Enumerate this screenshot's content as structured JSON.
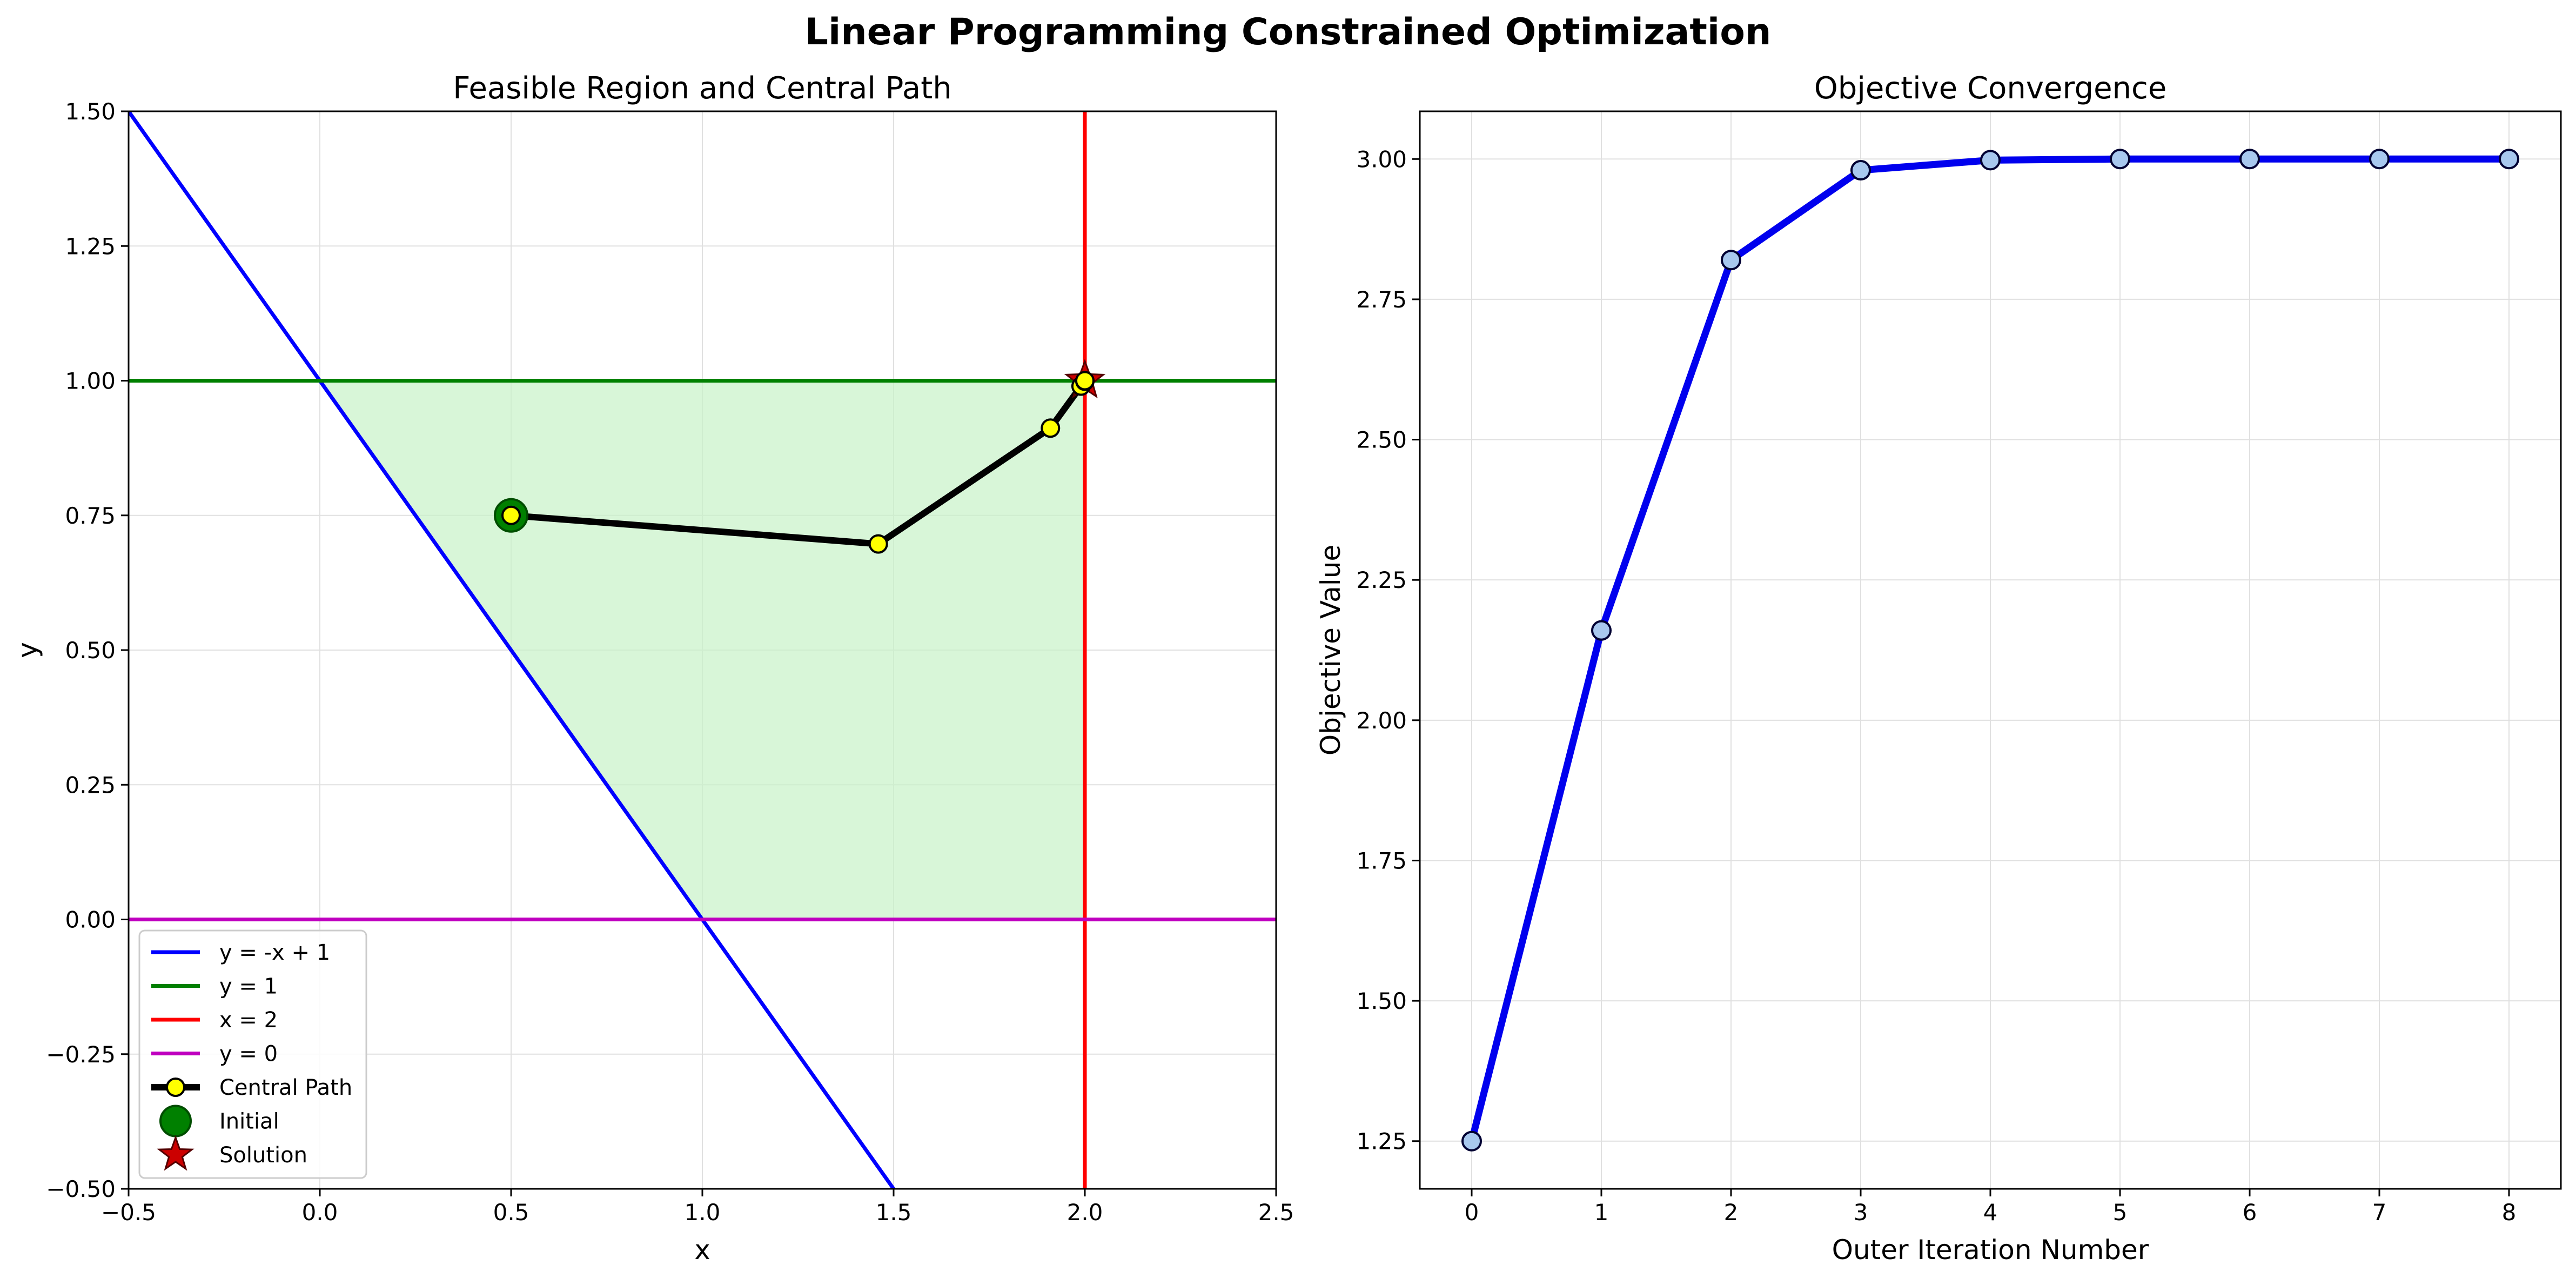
{
  "suptitle": "Linear Programming Constrained Optimization",
  "chart_data": [
    {
      "type": "line",
      "title": "Feasible Region and Central Path",
      "xlabel": "x",
      "ylabel": "y",
      "xlim": [
        -0.5,
        2.5
      ],
      "ylim": [
        -0.5,
        1.5
      ],
      "xticks": [
        -0.5,
        0.0,
        0.5,
        1.0,
        1.5,
        2.0,
        2.5
      ],
      "xtick_labels": [
        "−0.5",
        "0.0",
        "0.5",
        "1.0",
        "1.5",
        "2.0",
        "2.5"
      ],
      "yticks": [
        -0.5,
        -0.25,
        0.0,
        0.25,
        0.5,
        0.75,
        1.0,
        1.25,
        1.5
      ],
      "ytick_labels": [
        "−0.50",
        "−0.25",
        "0.00",
        "0.25",
        "0.50",
        "0.75",
        "1.00",
        "1.25",
        "1.50"
      ],
      "grid": true,
      "legend_position": "lower-left",
      "feasible_region": {
        "polygon": [
          [
            0,
            1
          ],
          [
            2,
            1
          ],
          [
            2,
            0
          ],
          [
            1,
            0
          ]
        ],
        "color": "#c8f2c8"
      },
      "constraints": [
        {
          "name": "y = -x + 1",
          "points": [
            [
              -0.5,
              1.5
            ],
            [
              1.5,
              -0.5
            ]
          ],
          "color": "#0000ff"
        },
        {
          "name": "y = 1",
          "points": [
            [
              -0.5,
              1.0
            ],
            [
              2.5,
              1.0
            ]
          ],
          "color": "#008000"
        },
        {
          "name": "x = 2",
          "points": [
            [
              2.0,
              -0.5
            ],
            [
              2.0,
              1.5
            ]
          ],
          "color": "#ff0000"
        },
        {
          "name": "y = 0",
          "points": [
            [
              -0.5,
              0.0
            ],
            [
              2.5,
              0.0
            ]
          ],
          "color": "#bf00bf"
        }
      ],
      "central_path": {
        "name": "Central Path",
        "x": [
          0.5,
          1.46,
          1.91,
          1.99,
          2.0,
          2.0
        ],
        "y": [
          0.75,
          0.697,
          0.912,
          0.99,
          0.999,
          1.0
        ],
        "line_color": "#000000",
        "marker_color": "#ffff00"
      },
      "initial": {
        "name": "Initial",
        "x": 0.5,
        "y": 0.75,
        "color": "#008000"
      },
      "solution": {
        "name": "Solution",
        "x": 2.0,
        "y": 1.0,
        "color": "#cc0000"
      }
    },
    {
      "type": "line",
      "title": "Objective Convergence",
      "xlabel": "Outer Iteration Number",
      "ylabel": "Objective Value",
      "xlim": [
        -0.4,
        8.4
      ],
      "ylim": [
        1.165,
        3.085
      ],
      "xticks": [
        0,
        1,
        2,
        3,
        4,
        5,
        6,
        7,
        8
      ],
      "xtick_labels": [
        "0",
        "1",
        "2",
        "3",
        "4",
        "5",
        "6",
        "7",
        "8"
      ],
      "yticks": [
        1.25,
        1.5,
        1.75,
        2.0,
        2.25,
        2.5,
        2.75,
        3.0
      ],
      "ytick_labels": [
        "1.25",
        "1.50",
        "1.75",
        "2.00",
        "2.25",
        "2.50",
        "2.75",
        "3.00"
      ],
      "grid": true,
      "series": [
        {
          "x": [
            0,
            1,
            2,
            3,
            4,
            5,
            6,
            7,
            8
          ],
          "y": [
            1.25,
            2.16,
            2.82,
            2.98,
            2.998,
            3.0,
            3.0,
            3.0,
            3.0
          ],
          "line_color": "#0000ee",
          "marker_color": "#a8c8ee"
        }
      ]
    }
  ]
}
